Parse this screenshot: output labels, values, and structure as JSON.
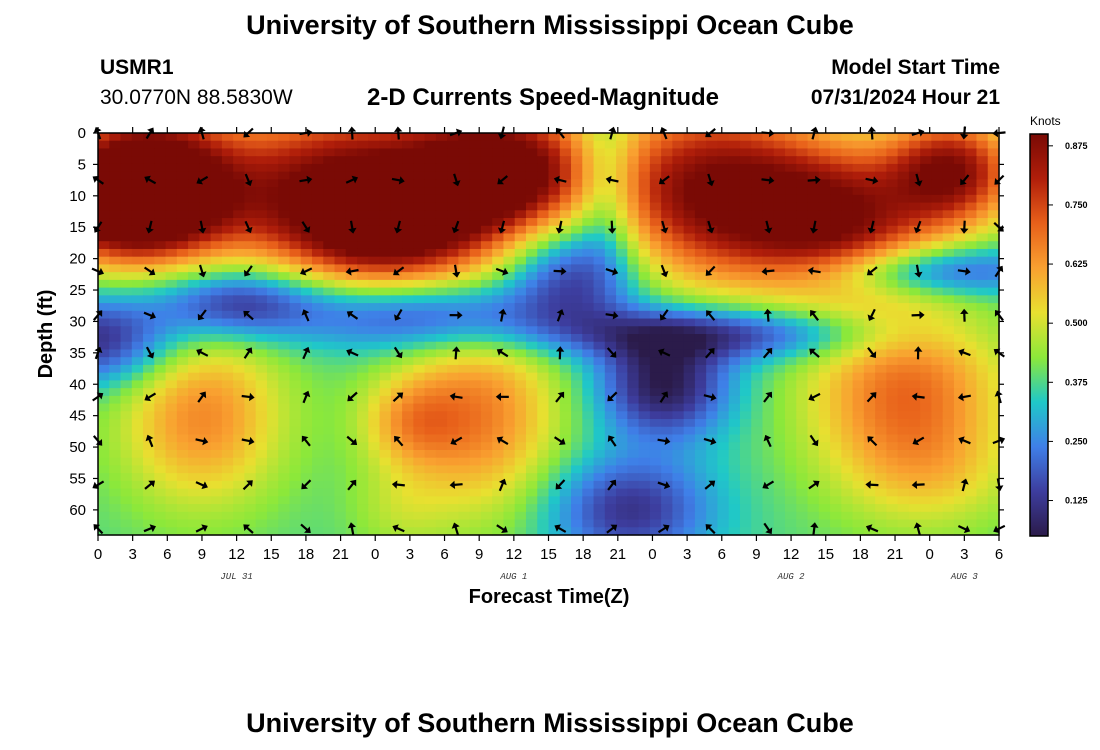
{
  "header": {
    "title": "University of Southern Mississippi Ocean Cube",
    "station_id": "USMR1",
    "coordinates": "30.0770N  88.5830W",
    "chart_name": "2-D Currents Speed-Magnitude",
    "model_start_label": "Model Start Time",
    "model_start_value": "07/31/2024 Hour 21"
  },
  "footer": {
    "title": "University of Southern Mississippi Ocean Cube"
  },
  "colors": {
    "scale": [
      "#2b1b4a",
      "#3d3d9e",
      "#3f7fe8",
      "#1fc8c8",
      "#8ce83a",
      "#e8e030",
      "#f9a030",
      "#e8601a",
      "#b01e0a",
      "#7a0a05"
    ]
  },
  "chart_data": {
    "type": "heatmap",
    "title": "2-D Currents Speed-Magnitude",
    "xlabel": "Forecast Time(Z)",
    "ylabel": "Depth (ft)",
    "x_tick_labels": [
      "0",
      "3",
      "6",
      "9",
      "12",
      "15",
      "18",
      "21",
      "0",
      "3",
      "6",
      "9",
      "12",
      "15",
      "18",
      "21",
      "0",
      "3",
      "6",
      "9",
      "12",
      "15",
      "18",
      "21",
      "0",
      "3",
      "6"
    ],
    "x_range_hours": [
      0,
      78
    ],
    "day_labels": [
      {
        "label": "JUL 31",
        "hour": 12
      },
      {
        "label": "AUG 1",
        "hour": 36
      },
      {
        "label": "AUG 2",
        "hour": 60
      },
      {
        "label": "AUG 3",
        "hour": 75
      }
    ],
    "y_tick_labels": [
      "0",
      "5",
      "10",
      "15",
      "20",
      "25",
      "30",
      "35",
      "40",
      "45",
      "50",
      "55",
      "60"
    ],
    "y_range_ft": [
      0,
      64
    ],
    "colorbar": {
      "title": "Knots",
      "tick_labels": [
        "0.875",
        "0.750",
        "0.625",
        "0.500",
        "0.375",
        "0.250",
        "0.125"
      ],
      "range": [
        0.05,
        0.9
      ]
    },
    "speed_blobs": [
      {
        "t": 4,
        "d": 7,
        "v": 0.92,
        "st": 5,
        "sd": 8
      },
      {
        "t": 2,
        "d": 12,
        "v": 0.8,
        "st": 6,
        "sd": 6
      },
      {
        "t": 22,
        "d": 8,
        "v": 0.9,
        "st": 9,
        "sd": 9
      },
      {
        "t": 35,
        "d": 6,
        "v": 0.88,
        "st": 5,
        "sd": 7
      },
      {
        "t": 25,
        "d": 16,
        "v": 0.75,
        "st": 6,
        "sd": 6
      },
      {
        "t": 53,
        "d": 9,
        "v": 0.88,
        "st": 7,
        "sd": 10
      },
      {
        "t": 64,
        "d": 14,
        "v": 0.82,
        "st": 6,
        "sd": 8
      },
      {
        "t": 74,
        "d": 6,
        "v": 0.85,
        "st": 4,
        "sd": 6
      },
      {
        "t": 9,
        "d": 45,
        "v": 0.65,
        "st": 5,
        "sd": 10
      },
      {
        "t": 33,
        "d": 45,
        "v": 0.66,
        "st": 5,
        "sd": 11
      },
      {
        "t": 27,
        "d": 46,
        "v": 0.55,
        "st": 3,
        "sd": 5
      },
      {
        "t": 70,
        "d": 42,
        "v": 0.7,
        "st": 6,
        "sd": 11
      },
      {
        "t": 26,
        "d": 60,
        "v": 0.45,
        "st": 3,
        "sd": 5
      },
      {
        "t": 73,
        "d": 55,
        "v": 0.45,
        "st": 5,
        "sd": 6
      }
    ],
    "slow_blobs": [
      {
        "t": 0,
        "d": 33,
        "v": 0.1,
        "st": 5,
        "sd": 5
      },
      {
        "t": 12,
        "d": 27,
        "v": 0.1,
        "st": 5,
        "sd": 4
      },
      {
        "t": 29,
        "d": 29,
        "v": 0.12,
        "st": 8,
        "sd": 4
      },
      {
        "t": 41,
        "d": 22,
        "v": 0.12,
        "st": 4,
        "sd": 6
      },
      {
        "t": 44,
        "d": 8,
        "v": 0.2,
        "st": 2,
        "sd": 9
      },
      {
        "t": 49,
        "d": 40,
        "v": 0.05,
        "st": 4,
        "sd": 6
      },
      {
        "t": 46,
        "d": 60,
        "v": 0.12,
        "st": 5,
        "sd": 6
      },
      {
        "t": 54,
        "d": 32,
        "v": 0.12,
        "st": 10,
        "sd": 3
      },
      {
        "t": 72,
        "d": 22,
        "v": 0.12,
        "st": 7,
        "sd": 3
      }
    ],
    "arrow_times": [
      0,
      4.5,
      9,
      13,
      18,
      22,
      26,
      31,
      35,
      40,
      44.5,
      49,
      53,
      58,
      62,
      67,
      71,
      75,
      78
    ],
    "arrow_depths": [
      0,
      7.5,
      15,
      22,
      29,
      35,
      42,
      49,
      56,
      63
    ],
    "arrow_direction_field": {
      "base_deg": 90,
      "t_amp": 140,
      "d_amp": 160,
      "t_scale": 6.5,
      "d_scale": 11
    }
  }
}
